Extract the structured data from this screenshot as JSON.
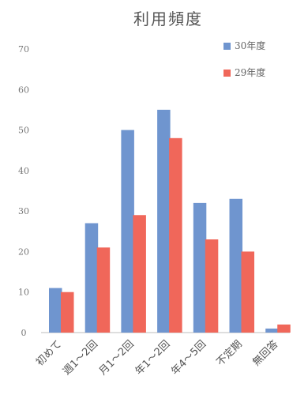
{
  "chart_data": {
    "type": "bar",
    "title": "利用頻度",
    "categories": [
      "初めて",
      "週1～2回",
      "月1～2回",
      "年1～2回",
      "年4～5回",
      "不定期",
      "無回答"
    ],
    "series": [
      {
        "name": "30年度",
        "color": "#6f95cf",
        "values": [
          11,
          27,
          50,
          55,
          32,
          33,
          1
        ]
      },
      {
        "name": "29年度",
        "color": "#f0675a",
        "values": [
          10,
          21,
          29,
          48,
          23,
          20,
          2
        ]
      }
    ],
    "ylim": [
      0,
      70
    ],
    "yticks": [
      0,
      10,
      20,
      30,
      40,
      50,
      60,
      70
    ],
    "grid": false,
    "legend": "top-right"
  }
}
